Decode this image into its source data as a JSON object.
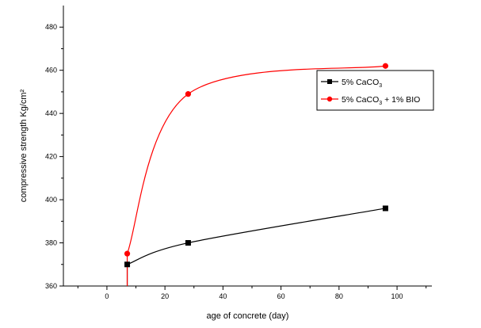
{
  "chart_data": {
    "type": "line",
    "xlabel": "age of concrete (day)",
    "ylabel": "compressive strength Kg/cm²",
    "xlim": [
      -15,
      112
    ],
    "ylim": [
      360,
      490
    ],
    "xticks": [
      0,
      20,
      40,
      60,
      80,
      100
    ],
    "yticks": [
      360,
      380,
      400,
      420,
      440,
      460,
      480
    ],
    "grid": false,
    "legend_position": "right",
    "series": [
      {
        "name": "5% CaCO3",
        "legend_parts": {
          "prefix": "5% CaCO",
          "sub": "3",
          "suffix": ""
        },
        "color": "#000000",
        "marker": "square",
        "x": [
          7,
          28,
          96
        ],
        "y": [
          370,
          380,
          396
        ]
      },
      {
        "name": "5% CaCO3 + 1% BIO",
        "legend_parts": {
          "prefix": "5% CaCO",
          "sub": "3",
          "suffix": " + 1% BIO"
        },
        "color": "#ff0000",
        "marker": "circle",
        "x": [
          7,
          28,
          96
        ],
        "y": [
          375,
          449,
          462
        ]
      }
    ]
  }
}
